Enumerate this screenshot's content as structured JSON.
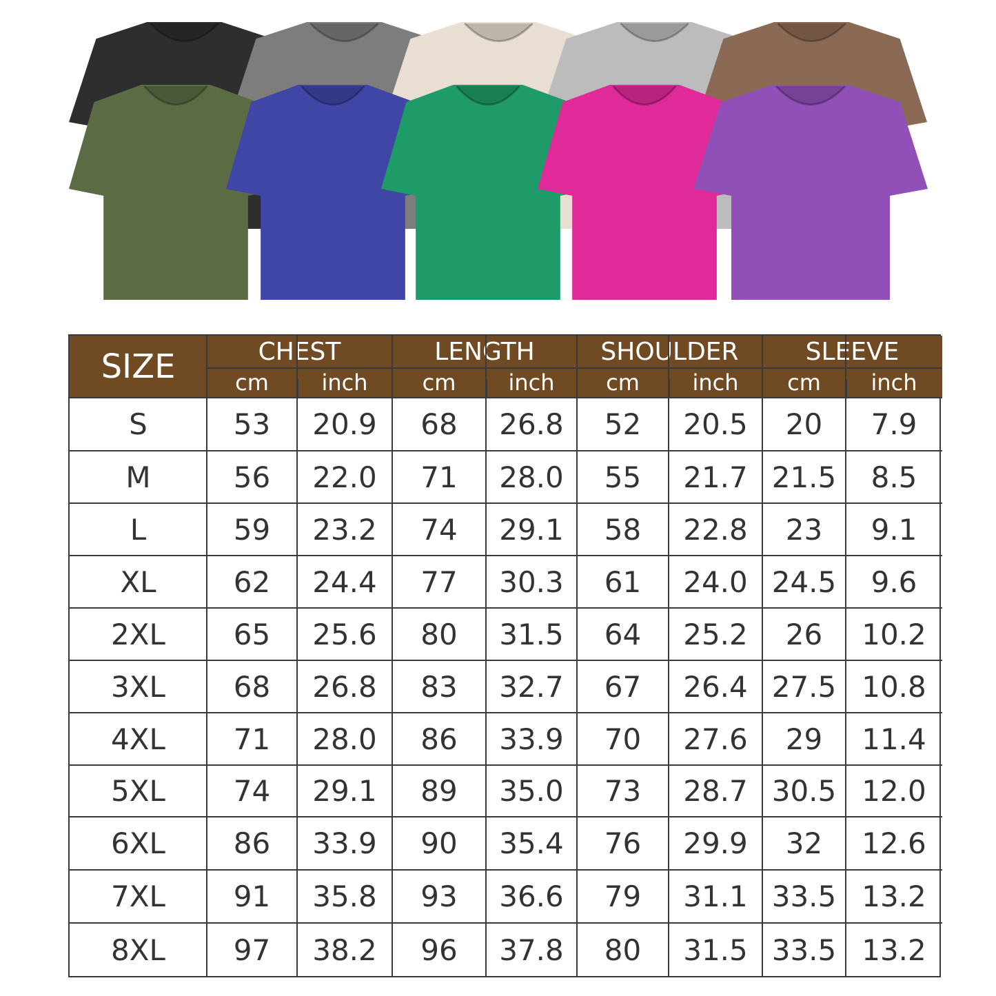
{
  "shirt_colors": {
    "back_row": [
      "#2e2e2e",
      "#7d7d7d",
      "#e8dfd2",
      "#bcbcbc",
      "#8b6a55"
    ],
    "front_row": [
      "#5b6c45",
      "#3f46a6",
      "#1e9b68",
      "#e02a9a",
      "#9150b8"
    ]
  },
  "table": {
    "header_color": "#704a22",
    "size_label": "SIZE",
    "groups": [
      "CHEST",
      "LENGTH",
      "SHOULDER",
      "SLEEVE"
    ],
    "units": [
      "cm",
      "inch"
    ],
    "rows": [
      [
        "S",
        "53",
        "20.9",
        "68",
        "26.8",
        "52",
        "20.5",
        "20",
        "7.9"
      ],
      [
        "M",
        "56",
        "22.0",
        "71",
        "28.0",
        "55",
        "21.7",
        "21.5",
        "8.5"
      ],
      [
        "L",
        "59",
        "23.2",
        "74",
        "29.1",
        "58",
        "22.8",
        "23",
        "9.1"
      ],
      [
        "XL",
        "62",
        "24.4",
        "77",
        "30.3",
        "61",
        "24.0",
        "24.5",
        "9.6"
      ],
      [
        "2XL",
        "65",
        "25.6",
        "80",
        "31.5",
        "64",
        "25.2",
        "26",
        "10.2"
      ],
      [
        "3XL",
        "68",
        "26.8",
        "83",
        "32.7",
        "67",
        "26.4",
        "27.5",
        "10.8"
      ],
      [
        "4XL",
        "71",
        "28.0",
        "86",
        "33.9",
        "70",
        "27.6",
        "29",
        "11.4"
      ],
      [
        "5XL",
        "74",
        "29.1",
        "89",
        "35.0",
        "73",
        "28.7",
        "30.5",
        "12.0"
      ],
      [
        "6XL",
        "86",
        "33.9",
        "90",
        "35.4",
        "76",
        "29.9",
        "32",
        "12.6"
      ],
      [
        "7XL",
        "91",
        "35.8",
        "93",
        "36.6",
        "79",
        "31.1",
        "33.5",
        "13.2"
      ],
      [
        "8XL",
        "97",
        "38.2",
        "96",
        "37.8",
        "80",
        "31.5",
        "33.5",
        "13.2"
      ]
    ]
  }
}
